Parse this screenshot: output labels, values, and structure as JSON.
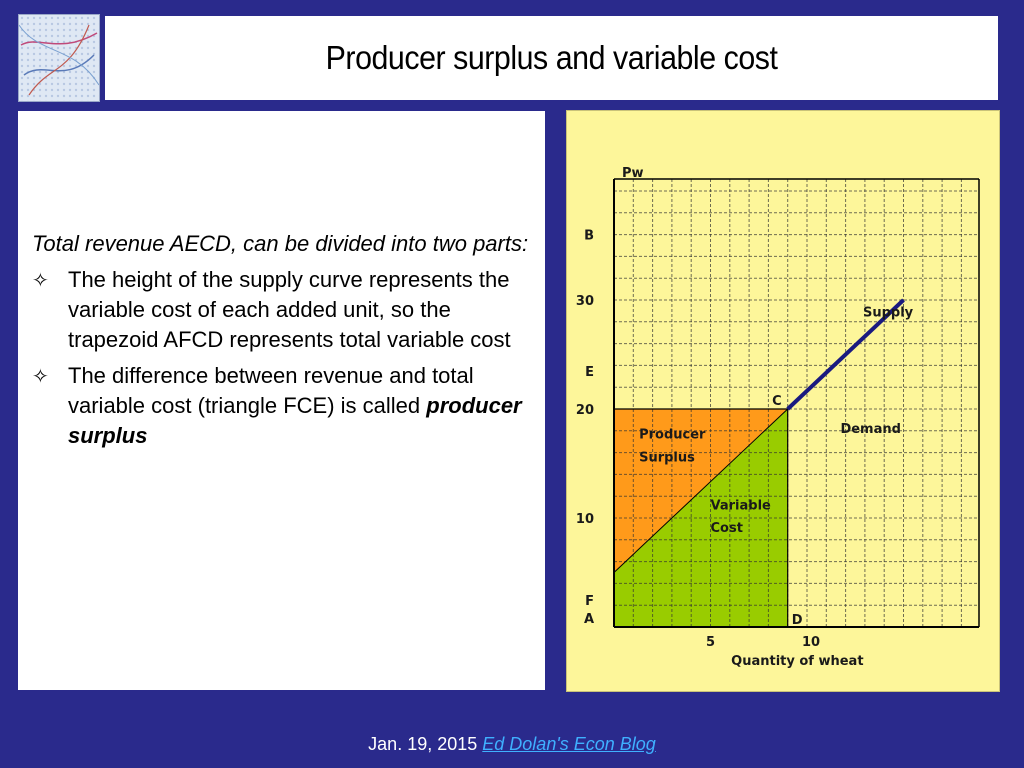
{
  "title": "Producer surplus and variable cost",
  "body": {
    "intro": "Total revenue AECD, can be divided into two parts:",
    "bullets": [
      "The height of the supply curve represents the variable cost of each added unit, so the trapezoid AFCD represents total variable cost",
      "The difference between revenue and total variable cost (triangle FCE) is called"
    ],
    "emphasis": "producer surplus"
  },
  "chart_data": {
    "type": "area",
    "xlabel": "Quantity of wheat",
    "ylabel": "Pw",
    "x_ticks": [
      "5",
      "10"
    ],
    "y_ticks": [
      "10",
      "20",
      "30"
    ],
    "point_labels": [
      "A",
      "B",
      "C",
      "D",
      "E",
      "F"
    ],
    "supply_label": "Supply",
    "demand_label": "Demand",
    "region_labels": {
      "producer_surplus": [
        "Producer",
        "Surplus"
      ],
      "variable_cost": [
        "Variable",
        "Cost"
      ]
    },
    "supply_points": [
      [
        0,
        5
      ],
      [
        9,
        20
      ],
      [
        15,
        30
      ]
    ],
    "price": 20,
    "quantity": 9,
    "colors": {
      "producer_surplus": "#ff9a1a",
      "variable_cost": "#99cc00",
      "supply_line": "#1a1a80",
      "background": "#fdf69a"
    }
  },
  "footer": {
    "date": "Jan. 19, 2015",
    "link_text": "Ed Dolan's Econ Blog"
  }
}
